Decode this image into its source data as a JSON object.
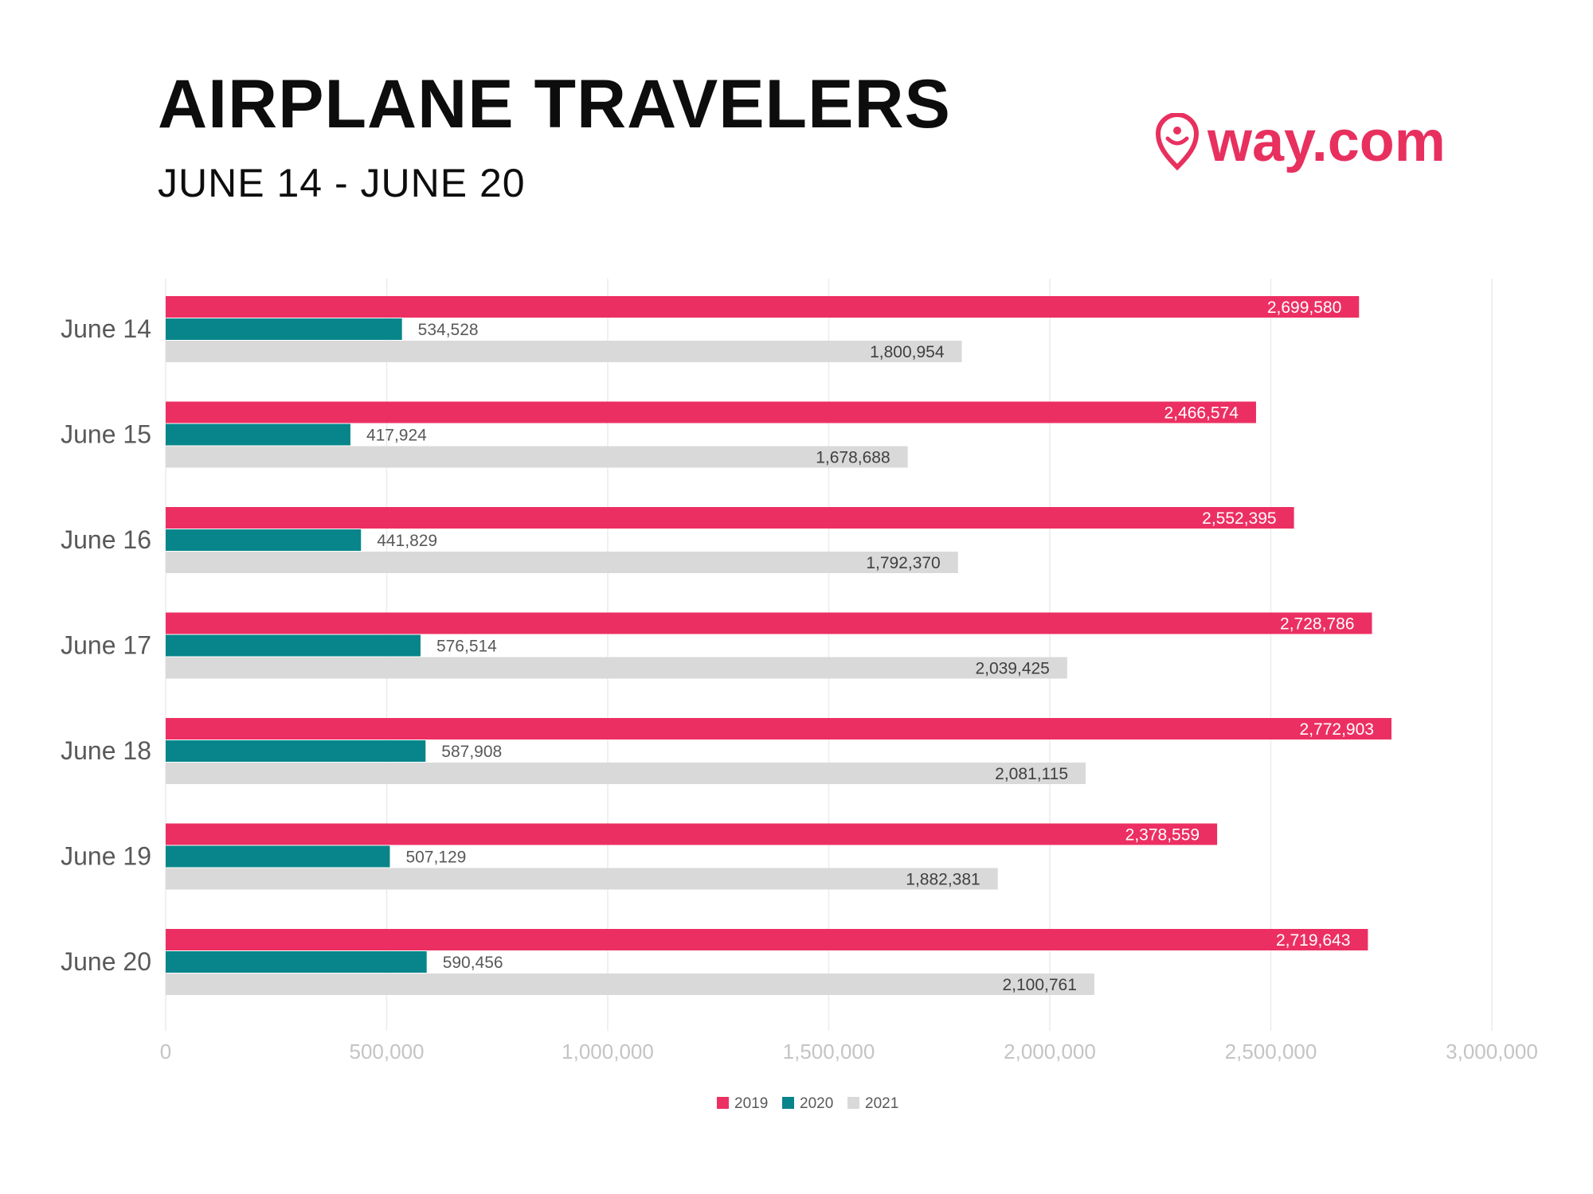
{
  "header": {
    "title": "AIRPLANE TRAVELERS",
    "subtitle": "JUNE 14 - JUNE 20"
  },
  "logo": {
    "text": "way.com",
    "icon": "location-pin-smiley-icon",
    "color": "#e8305f"
  },
  "chart_data": {
    "type": "bar",
    "orientation": "horizontal",
    "categories": [
      "June 14",
      "June 15",
      "June 16",
      "June 17",
      "June 18",
      "June 19",
      "June 20"
    ],
    "series": [
      {
        "name": "2019",
        "color": "#ec2f62",
        "values": [
          2699580,
          2466574,
          2552395,
          2728786,
          2772903,
          2378559,
          2719643
        ],
        "labels": [
          "2,699,580",
          "2,466,574",
          "2,552,395",
          "2,728,786",
          "2,772,903",
          "2,378,559",
          "2,719,643"
        ]
      },
      {
        "name": "2020",
        "color": "#07858a",
        "values": [
          534528,
          417924,
          441829,
          576514,
          587908,
          507129,
          590456
        ],
        "labels": [
          "534,528",
          "417,924",
          "441,829",
          "576,514",
          "587,908",
          "507,129",
          "590,456"
        ]
      },
      {
        "name": "2021",
        "color": "#d9d9d9",
        "values": [
          1800954,
          1678688,
          1792370,
          2039425,
          2081115,
          1882381,
          2100761
        ],
        "labels": [
          "1,800,954",
          "1,678,688",
          "1,792,370",
          "2,039,425",
          "2,081,115",
          "1,882,381",
          "2,100,761"
        ]
      }
    ],
    "xlim": [
      0,
      3000000
    ],
    "x_ticks": [
      "0",
      "500,000",
      "1,000,000",
      "1,500,000",
      "2,000,000",
      "2,500,000",
      "3,000,000"
    ],
    "grid": true,
    "legend": "bottom"
  }
}
